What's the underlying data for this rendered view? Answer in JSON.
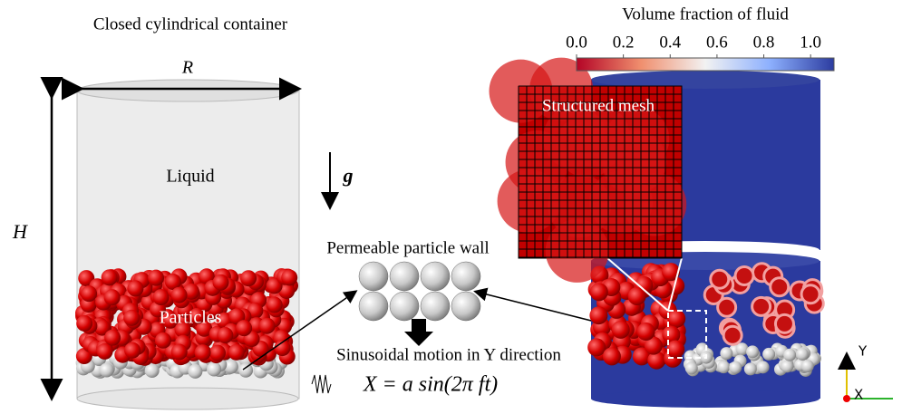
{
  "left_panel": {
    "title": "Closed cylindrical container",
    "radius_label": "R",
    "height_label": "H",
    "liquid_label": "Liquid",
    "gravity_label": "g",
    "particles_label": "Particles"
  },
  "middle_panel": {
    "wall_label": "Permeable particle wall",
    "motion_label": "Sinusoidal motion in Y direction",
    "equation": "X = a sin(2π ft)"
  },
  "right_panel": {
    "colorbar": {
      "title": "Volume fraction of fluid",
      "lim": [
        0,
        1.1
      ],
      "ticks": [
        {
          "value": 0,
          "label": "0.0"
        },
        {
          "value": 0.2,
          "label": "0.2"
        },
        {
          "value": 0.4,
          "label": "0.4"
        },
        {
          "value": 0.6,
          "label": "0.6"
        },
        {
          "value": 0.8,
          "label": "0.8"
        },
        {
          "value": 1.0,
          "label": "1.0"
        }
      ]
    },
    "inset_label": "Structured mesh",
    "axis_y": "Y",
    "axis_x": "X"
  }
}
